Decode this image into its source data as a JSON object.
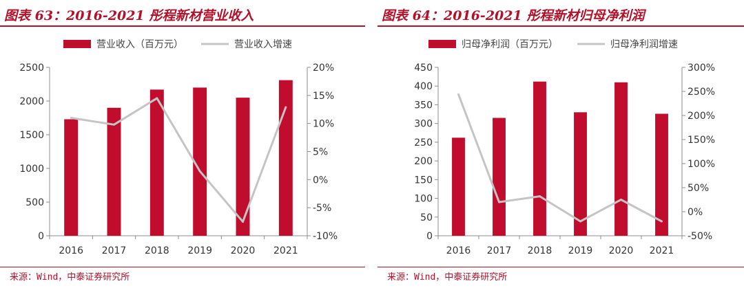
{
  "colors": {
    "bar": "#c00d2d",
    "line": "#c4c4c4",
    "accent": "#b3102a",
    "axis": "#8c8c8c"
  },
  "charts": [
    {
      "title": "图表 63：2016-2021 彤程新材营业收入",
      "source": "来源：Wind，中泰证券研究所",
      "chart_data": {
        "type": "bar",
        "categories": [
          "2016",
          "2017",
          "2018",
          "2019",
          "2020",
          "2021"
        ],
        "series": [
          {
            "name": "营业收入（百万元）",
            "kind": "bar",
            "axis": "left",
            "values": [
              1730,
              1900,
              2170,
              2200,
              2050,
              2310
            ]
          },
          {
            "name": "营业收入增速",
            "kind": "line",
            "axis": "right",
            "values": [
              11.0,
              9.8,
              14.5,
              1.5,
              -7.5,
              12.9
            ]
          }
        ],
        "left_axis": {
          "min": 0,
          "max": 2500,
          "step": 500,
          "ticks": [
            "0",
            "500",
            "1000",
            "1500",
            "2000",
            "2500"
          ]
        },
        "right_axis": {
          "min": -10,
          "max": 20,
          "step": 5,
          "ticks": [
            "-10%",
            "-5%",
            "0%",
            "5%",
            "10%",
            "15%",
            "20%"
          ]
        },
        "legend_position": "top-center",
        "grid": false
      }
    },
    {
      "title": "图表 64：2016-2021 彤程新材归母净利润",
      "source": "来源：Wind，中泰证券研究所",
      "chart_data": {
        "type": "bar",
        "categories": [
          "2016",
          "2017",
          "2018",
          "2019",
          "2020",
          "2021"
        ],
        "series": [
          {
            "name": "归母净利润（百万元）",
            "kind": "bar",
            "axis": "left",
            "values": [
              262,
              315,
              412,
              330,
              410,
              326
            ]
          },
          {
            "name": "归母净利润增速",
            "kind": "line",
            "axis": "right",
            "values": [
              244,
              20,
              32,
              -20,
              25,
              -20
            ]
          }
        ],
        "left_axis": {
          "min": 0,
          "max": 450,
          "step": 50,
          "ticks": [
            "0",
            "50",
            "100",
            "150",
            "200",
            "250",
            "300",
            "350",
            "400",
            "450"
          ]
        },
        "right_axis": {
          "min": -50,
          "max": 300,
          "step": 50,
          "ticks": [
            "-50%",
            "0%",
            "50%",
            "100%",
            "150%",
            "200%",
            "250%",
            "300%"
          ]
        },
        "legend_position": "top-center",
        "grid": false
      }
    }
  ]
}
